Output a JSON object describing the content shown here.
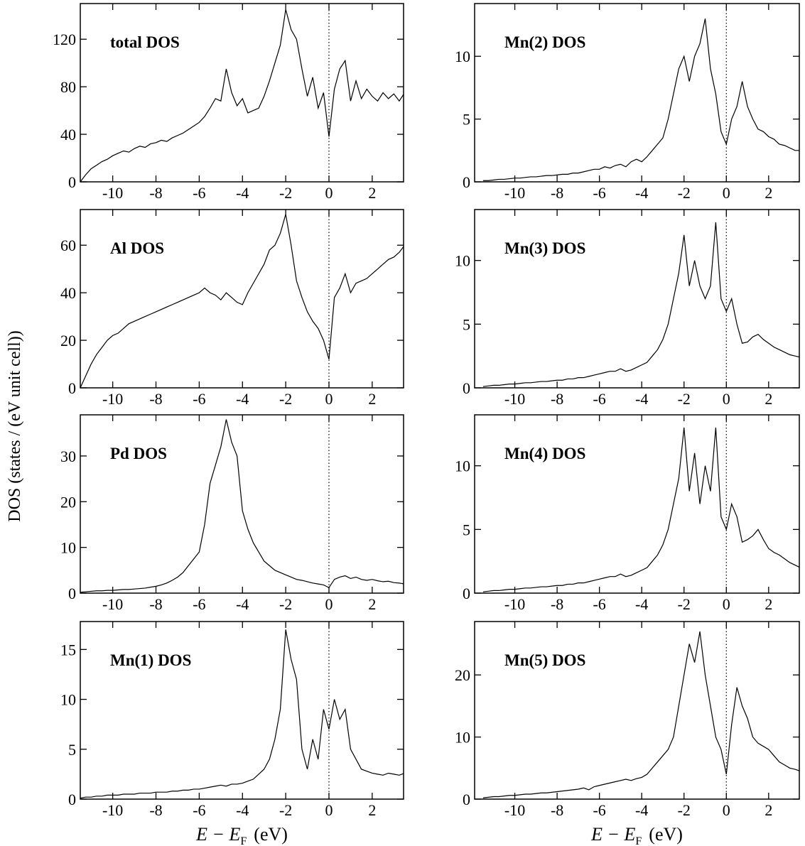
{
  "ylabel": "DOS (states / (eV unit cell))",
  "chart_data": [
    {
      "type": "line",
      "title": "total DOS",
      "x": [
        -11.5,
        -11.25,
        -11,
        -10.75,
        -10.5,
        -10.25,
        -10,
        -9.75,
        -9.5,
        -9.25,
        -9,
        -8.75,
        -8.5,
        -8.25,
        -8,
        -7.75,
        -7.5,
        -7.25,
        -7,
        -6.75,
        -6.5,
        -6.25,
        -6,
        -5.75,
        -5.5,
        -5.25,
        -5,
        -4.75,
        -4.5,
        -4.25,
        -4,
        -3.75,
        -3.5,
        -3.25,
        -3,
        -2.75,
        -2.5,
        -2.25,
        -2,
        -1.75,
        -1.5,
        -1.25,
        -1,
        -0.75,
        -0.5,
        -0.25,
        0,
        0.25,
        0.5,
        0.75,
        1,
        1.25,
        1.5,
        1.75,
        2,
        2.25,
        2.5,
        2.75,
        3,
        3.25,
        3.5
      ],
      "series": [
        {
          "color": "#000000",
          "values": [
            0,
            6,
            11,
            14,
            17,
            19,
            22,
            24,
            26,
            25,
            28,
            30,
            29,
            32,
            33,
            35,
            34,
            37,
            39,
            41,
            44,
            47,
            50,
            55,
            62,
            70,
            68,
            95,
            75,
            64,
            70,
            58,
            60,
            62,
            72,
            85,
            100,
            115,
            145,
            128,
            120,
            95,
            72,
            88,
            62,
            75,
            38,
            78,
            95,
            102,
            68,
            85,
            70,
            78,
            72,
            68,
            75,
            70,
            74,
            68,
            75
          ]
        }
      ],
      "xlim": [
        -11.5,
        3.45
      ],
      "ylim": [
        0,
        150
      ],
      "xticks": [
        -10,
        -8,
        -6,
        -4,
        -2,
        0,
        2
      ],
      "yticks": [
        0,
        40,
        80,
        120
      ],
      "vline": 0
    },
    {
      "type": "line",
      "title": "Mn(2) DOS",
      "x": [
        -11.5,
        -11.25,
        -11,
        -10.75,
        -10.5,
        -10.25,
        -10,
        -9.75,
        -9.5,
        -9.25,
        -9,
        -8.75,
        -8.5,
        -8.25,
        -8,
        -7.75,
        -7.5,
        -7.25,
        -7,
        -6.75,
        -6.5,
        -6.25,
        -6,
        -5.75,
        -5.5,
        -5.25,
        -5,
        -4.75,
        -4.5,
        -4.25,
        -4,
        -3.75,
        -3.5,
        -3.25,
        -3,
        -2.75,
        -2.5,
        -2.25,
        -2,
        -1.75,
        -1.5,
        -1.25,
        -1,
        -0.75,
        -0.5,
        -0.25,
        0,
        0.25,
        0.5,
        0.75,
        1,
        1.25,
        1.5,
        1.75,
        2,
        2.25,
        2.5,
        2.75,
        3,
        3.25,
        3.5
      ],
      "series": [
        {
          "color": "#000000",
          "values": [
            0.1,
            0.1,
            0.15,
            0.2,
            0.2,
            0.25,
            0.3,
            0.3,
            0.35,
            0.4,
            0.4,
            0.45,
            0.5,
            0.5,
            0.55,
            0.6,
            0.6,
            0.7,
            0.7,
            0.8,
            0.9,
            1,
            1,
            1.2,
            1.1,
            1.3,
            1.4,
            1.2,
            1.6,
            1.8,
            1.6,
            2,
            2.5,
            3,
            3.5,
            5,
            7,
            9,
            10,
            8,
            10,
            11,
            13,
            9,
            7,
            4,
            3,
            5,
            6,
            8,
            6,
            5,
            4.2,
            4,
            3.6,
            3.4,
            3,
            2.9,
            2.7,
            2.5,
            2.5
          ]
        }
      ],
      "xlim": [
        -11.9,
        3.45
      ],
      "ylim": [
        0,
        14.2
      ],
      "xticks": [
        -10,
        -8,
        -6,
        -4,
        -2,
        0,
        2
      ],
      "yticks": [
        0,
        5,
        10
      ],
      "vline": 0
    },
    {
      "type": "line",
      "title": "Al DOS",
      "x": [
        -11.5,
        -11.25,
        -11,
        -10.75,
        -10.5,
        -10.25,
        -10,
        -9.75,
        -9.5,
        -9.25,
        -9,
        -8.75,
        -8.5,
        -8.25,
        -8,
        -7.75,
        -7.5,
        -7.25,
        -7,
        -6.75,
        -6.5,
        -6.25,
        -6,
        -5.75,
        -5.5,
        -5.25,
        -5,
        -4.75,
        -4.5,
        -4.25,
        -4,
        -3.75,
        -3.5,
        -3.25,
        -3,
        -2.75,
        -2.5,
        -2.25,
        -2,
        -1.75,
        -1.5,
        -1.25,
        -1,
        -0.75,
        -0.5,
        -0.25,
        0,
        0.25,
        0.5,
        0.75,
        1,
        1.25,
        1.5,
        1.75,
        2,
        2.25,
        2.5,
        2.75,
        3,
        3.25,
        3.5
      ],
      "series": [
        {
          "color": "#000000",
          "values": [
            0,
            5,
            10,
            14,
            17,
            20,
            22,
            23,
            25,
            27,
            28,
            29,
            30,
            31,
            32,
            33,
            34,
            35,
            36,
            37,
            38,
            39,
            40,
            42,
            40,
            39,
            37,
            40,
            38,
            36,
            35,
            40,
            44,
            48,
            52,
            58,
            60,
            65,
            73,
            60,
            45,
            38,
            32,
            28,
            25,
            20,
            12,
            38,
            42,
            48,
            40,
            44,
            45,
            46,
            48,
            50,
            52,
            54,
            55,
            57,
            60
          ]
        }
      ],
      "xlim": [
        -11.5,
        3.45
      ],
      "ylim": [
        0,
        75
      ],
      "xticks": [
        -10,
        -8,
        -6,
        -4,
        -2,
        0,
        2
      ],
      "yticks": [
        0,
        20,
        40,
        60
      ],
      "vline": 0
    },
    {
      "type": "line",
      "title": "Mn(3) DOS",
      "x": [
        -11.5,
        -11.25,
        -11,
        -10.75,
        -10.5,
        -10.25,
        -10,
        -9.75,
        -9.5,
        -9.25,
        -9,
        -8.75,
        -8.5,
        -8.25,
        -8,
        -7.75,
        -7.5,
        -7.25,
        -7,
        -6.75,
        -6.5,
        -6.25,
        -6,
        -5.75,
        -5.5,
        -5.25,
        -5,
        -4.75,
        -4.5,
        -4.25,
        -4,
        -3.75,
        -3.5,
        -3.25,
        -3,
        -2.75,
        -2.5,
        -2.25,
        -2,
        -1.75,
        -1.5,
        -1.25,
        -1,
        -0.75,
        -0.5,
        -0.25,
        0,
        0.25,
        0.5,
        0.75,
        1,
        1.25,
        1.5,
        1.75,
        2,
        2.25,
        2.5,
        2.75,
        3,
        3.25,
        3.5
      ],
      "series": [
        {
          "color": "#000000",
          "values": [
            0.1,
            0.15,
            0.2,
            0.2,
            0.25,
            0.3,
            0.3,
            0.35,
            0.4,
            0.4,
            0.45,
            0.5,
            0.5,
            0.55,
            0.6,
            0.6,
            0.7,
            0.7,
            0.8,
            0.8,
            0.9,
            1,
            1.1,
            1.2,
            1.3,
            1.3,
            1.5,
            1.3,
            1.4,
            1.6,
            1.8,
            2,
            2.5,
            3,
            3.8,
            5,
            7,
            9,
            12,
            8,
            10,
            8,
            7,
            8,
            13,
            7,
            6,
            7,
            5,
            3.5,
            3.6,
            4,
            4.2,
            3.8,
            3.5,
            3.2,
            3,
            2.8,
            2.6,
            2.5,
            2.4
          ]
        }
      ],
      "xlim": [
        -11.9,
        3.45
      ],
      "ylim": [
        0,
        14
      ],
      "xticks": [
        -10,
        -8,
        -6,
        -4,
        -2,
        0,
        2
      ],
      "yticks": [
        0,
        5,
        10
      ],
      "vline": 0
    },
    {
      "type": "line",
      "title": "Pd DOS",
      "x": [
        -11.5,
        -11.25,
        -11,
        -10.75,
        -10.5,
        -10.25,
        -10,
        -9.75,
        -9.5,
        -9.25,
        -9,
        -8.75,
        -8.5,
        -8.25,
        -8,
        -7.75,
        -7.5,
        -7.25,
        -7,
        -6.75,
        -6.5,
        -6.25,
        -6,
        -5.75,
        -5.5,
        -5.25,
        -5,
        -4.75,
        -4.5,
        -4.25,
        -4,
        -3.75,
        -3.5,
        -3.25,
        -3,
        -2.75,
        -2.5,
        -2.25,
        -2,
        -1.75,
        -1.5,
        -1.25,
        -1,
        -0.75,
        -0.5,
        -0.25,
        0,
        0.25,
        0.5,
        0.75,
        1,
        1.25,
        1.5,
        1.75,
        2,
        2.25,
        2.5,
        2.75,
        3,
        3.25,
        3.5
      ],
      "series": [
        {
          "color": "#000000",
          "values": [
            0.2,
            0.3,
            0.4,
            0.5,
            0.5,
            0.6,
            0.6,
            0.7,
            0.8,
            0.8,
            0.9,
            1,
            1.1,
            1.3,
            1.5,
            1.8,
            2.2,
            2.8,
            3.5,
            4.5,
            6,
            7.5,
            9,
            15,
            24,
            28,
            32,
            38,
            33,
            30,
            18,
            14,
            11,
            9,
            7,
            6,
            5,
            4.5,
            4,
            3.5,
            3,
            2.8,
            2.5,
            2.2,
            2,
            1.8,
            1.2,
            3,
            3.5,
            3.8,
            3.2,
            3.5,
            3,
            2.8,
            3,
            2.7,
            2.5,
            2.6,
            2.3,
            2.2,
            2
          ]
        }
      ],
      "xlim": [
        -11.5,
        3.45
      ],
      "ylim": [
        0,
        39
      ],
      "xticks": [
        -10,
        -8,
        -6,
        -4,
        -2,
        0,
        2
      ],
      "yticks": [
        0,
        10,
        20,
        30
      ],
      "vline": 0
    },
    {
      "type": "line",
      "title": "Mn(4) DOS",
      "x": [
        -11.5,
        -11.25,
        -11,
        -10.75,
        -10.5,
        -10.25,
        -10,
        -9.75,
        -9.5,
        -9.25,
        -9,
        -8.75,
        -8.5,
        -8.25,
        -8,
        -7.75,
        -7.5,
        -7.25,
        -7,
        -6.75,
        -6.5,
        -6.25,
        -6,
        -5.75,
        -5.5,
        -5.25,
        -5,
        -4.75,
        -4.5,
        -4.25,
        -4,
        -3.75,
        -3.5,
        -3.25,
        -3,
        -2.75,
        -2.5,
        -2.25,
        -2,
        -1.75,
        -1.5,
        -1.25,
        -1,
        -0.75,
        -0.5,
        -0.25,
        0,
        0.25,
        0.5,
        0.75,
        1,
        1.25,
        1.5,
        1.75,
        2,
        2.25,
        2.5,
        2.75,
        3,
        3.25,
        3.5
      ],
      "series": [
        {
          "color": "#000000",
          "values": [
            0.1,
            0.15,
            0.2,
            0.2,
            0.25,
            0.3,
            0.3,
            0.35,
            0.4,
            0.4,
            0.45,
            0.5,
            0.5,
            0.55,
            0.6,
            0.6,
            0.7,
            0.7,
            0.8,
            0.8,
            0.9,
            1,
            1.1,
            1.2,
            1.3,
            1.3,
            1.5,
            1.3,
            1.4,
            1.6,
            1.8,
            2,
            2.5,
            3,
            3.8,
            5,
            7,
            9,
            13,
            8,
            11,
            7,
            10,
            8,
            13,
            6,
            5,
            7,
            6,
            4,
            4.2,
            4.5,
            5,
            4.2,
            3.5,
            3.2,
            3,
            2.7,
            2.4,
            2.2,
            2
          ]
        }
      ],
      "xlim": [
        -11.9,
        3.45
      ],
      "ylim": [
        0,
        14
      ],
      "xticks": [
        -10,
        -8,
        -6,
        -4,
        -2,
        0,
        2
      ],
      "yticks": [
        0,
        5,
        10
      ],
      "vline": 0
    },
    {
      "type": "line",
      "title": "Mn(1) DOS",
      "xlabel": {
        "var": "E − E",
        "sub": "F",
        "unit": "(eV)"
      },
      "x": [
        -11.5,
        -11.25,
        -11,
        -10.75,
        -10.5,
        -10.25,
        -10,
        -9.75,
        -9.5,
        -9.25,
        -9,
        -8.75,
        -8.5,
        -8.25,
        -8,
        -7.75,
        -7.5,
        -7.25,
        -7,
        -6.75,
        -6.5,
        -6.25,
        -6,
        -5.75,
        -5.5,
        -5.25,
        -5,
        -4.75,
        -4.5,
        -4.25,
        -4,
        -3.75,
        -3.5,
        -3.25,
        -3,
        -2.75,
        -2.5,
        -2.25,
        -2,
        -1.75,
        -1.5,
        -1.25,
        -1,
        -0.75,
        -0.5,
        -0.25,
        0,
        0.25,
        0.5,
        0.75,
        1,
        1.25,
        1.5,
        1.75,
        2,
        2.25,
        2.5,
        2.75,
        3,
        3.25,
        3.5
      ],
      "series": [
        {
          "color": "#000000",
          "values": [
            0.1,
            0.2,
            0.2,
            0.3,
            0.3,
            0.4,
            0.4,
            0.4,
            0.5,
            0.5,
            0.5,
            0.6,
            0.6,
            0.6,
            0.7,
            0.7,
            0.7,
            0.8,
            0.8,
            0.9,
            0.9,
            1,
            1,
            1.1,
            1.2,
            1.3,
            1.4,
            1.3,
            1.5,
            1.5,
            1.6,
            1.8,
            2,
            2.5,
            3,
            4,
            6,
            9,
            17,
            14,
            12,
            5,
            3,
            6,
            4,
            9,
            7,
            10,
            8,
            9,
            5,
            4,
            3,
            2.8,
            2.6,
            2.5,
            2.4,
            2.6,
            2.5,
            2.4,
            2.6
          ]
        }
      ],
      "xlim": [
        -11.5,
        3.45
      ],
      "ylim": [
        0,
        17.8
      ],
      "xticks": [
        -10,
        -8,
        -6,
        -4,
        -2,
        0,
        2
      ],
      "yticks": [
        0,
        5,
        10,
        15
      ],
      "vline": 0
    },
    {
      "type": "line",
      "title": "Mn(5) DOS",
      "xlabel": {
        "var": "E − E",
        "sub": "F",
        "unit": "(eV)"
      },
      "x": [
        -11.5,
        -11.25,
        -11,
        -10.75,
        -10.5,
        -10.25,
        -10,
        -9.75,
        -9.5,
        -9.25,
        -9,
        -8.75,
        -8.5,
        -8.25,
        -8,
        -7.75,
        -7.5,
        -7.25,
        -7,
        -6.75,
        -6.5,
        -6.25,
        -6,
        -5.75,
        -5.5,
        -5.25,
        -5,
        -4.75,
        -4.5,
        -4.25,
        -4,
        -3.75,
        -3.5,
        -3.25,
        -3,
        -2.75,
        -2.5,
        -2.25,
        -2,
        -1.75,
        -1.5,
        -1.25,
        -1,
        -0.75,
        -0.5,
        -0.25,
        0,
        0.25,
        0.5,
        0.75,
        1,
        1.25,
        1.5,
        1.75,
        2,
        2.25,
        2.5,
        2.75,
        3,
        3.25,
        3.5
      ],
      "series": [
        {
          "color": "#000000",
          "values": [
            0.2,
            0.3,
            0.4,
            0.4,
            0.5,
            0.6,
            0.6,
            0.7,
            0.8,
            0.8,
            0.9,
            1,
            1,
            1.1,
            1.2,
            1.3,
            1.4,
            1.5,
            1.6,
            1.8,
            1.5,
            2,
            2.2,
            2.4,
            2.6,
            2.8,
            3,
            3.2,
            3,
            3.3,
            3.5,
            4,
            5,
            6,
            7,
            8,
            10,
            15,
            20,
            25,
            22,
            27,
            20,
            15,
            10,
            8,
            4,
            12,
            18,
            15,
            13,
            10,
            9,
            8.5,
            8,
            7,
            6,
            5.5,
            5,
            4.8,
            4.5
          ]
        }
      ],
      "xlim": [
        -11.9,
        3.45
      ],
      "ylim": [
        0,
        28.6
      ],
      "xticks": [
        -10,
        -8,
        -6,
        -4,
        -2,
        0,
        2
      ],
      "yticks": [
        0,
        10,
        20
      ],
      "vline": 0
    }
  ]
}
